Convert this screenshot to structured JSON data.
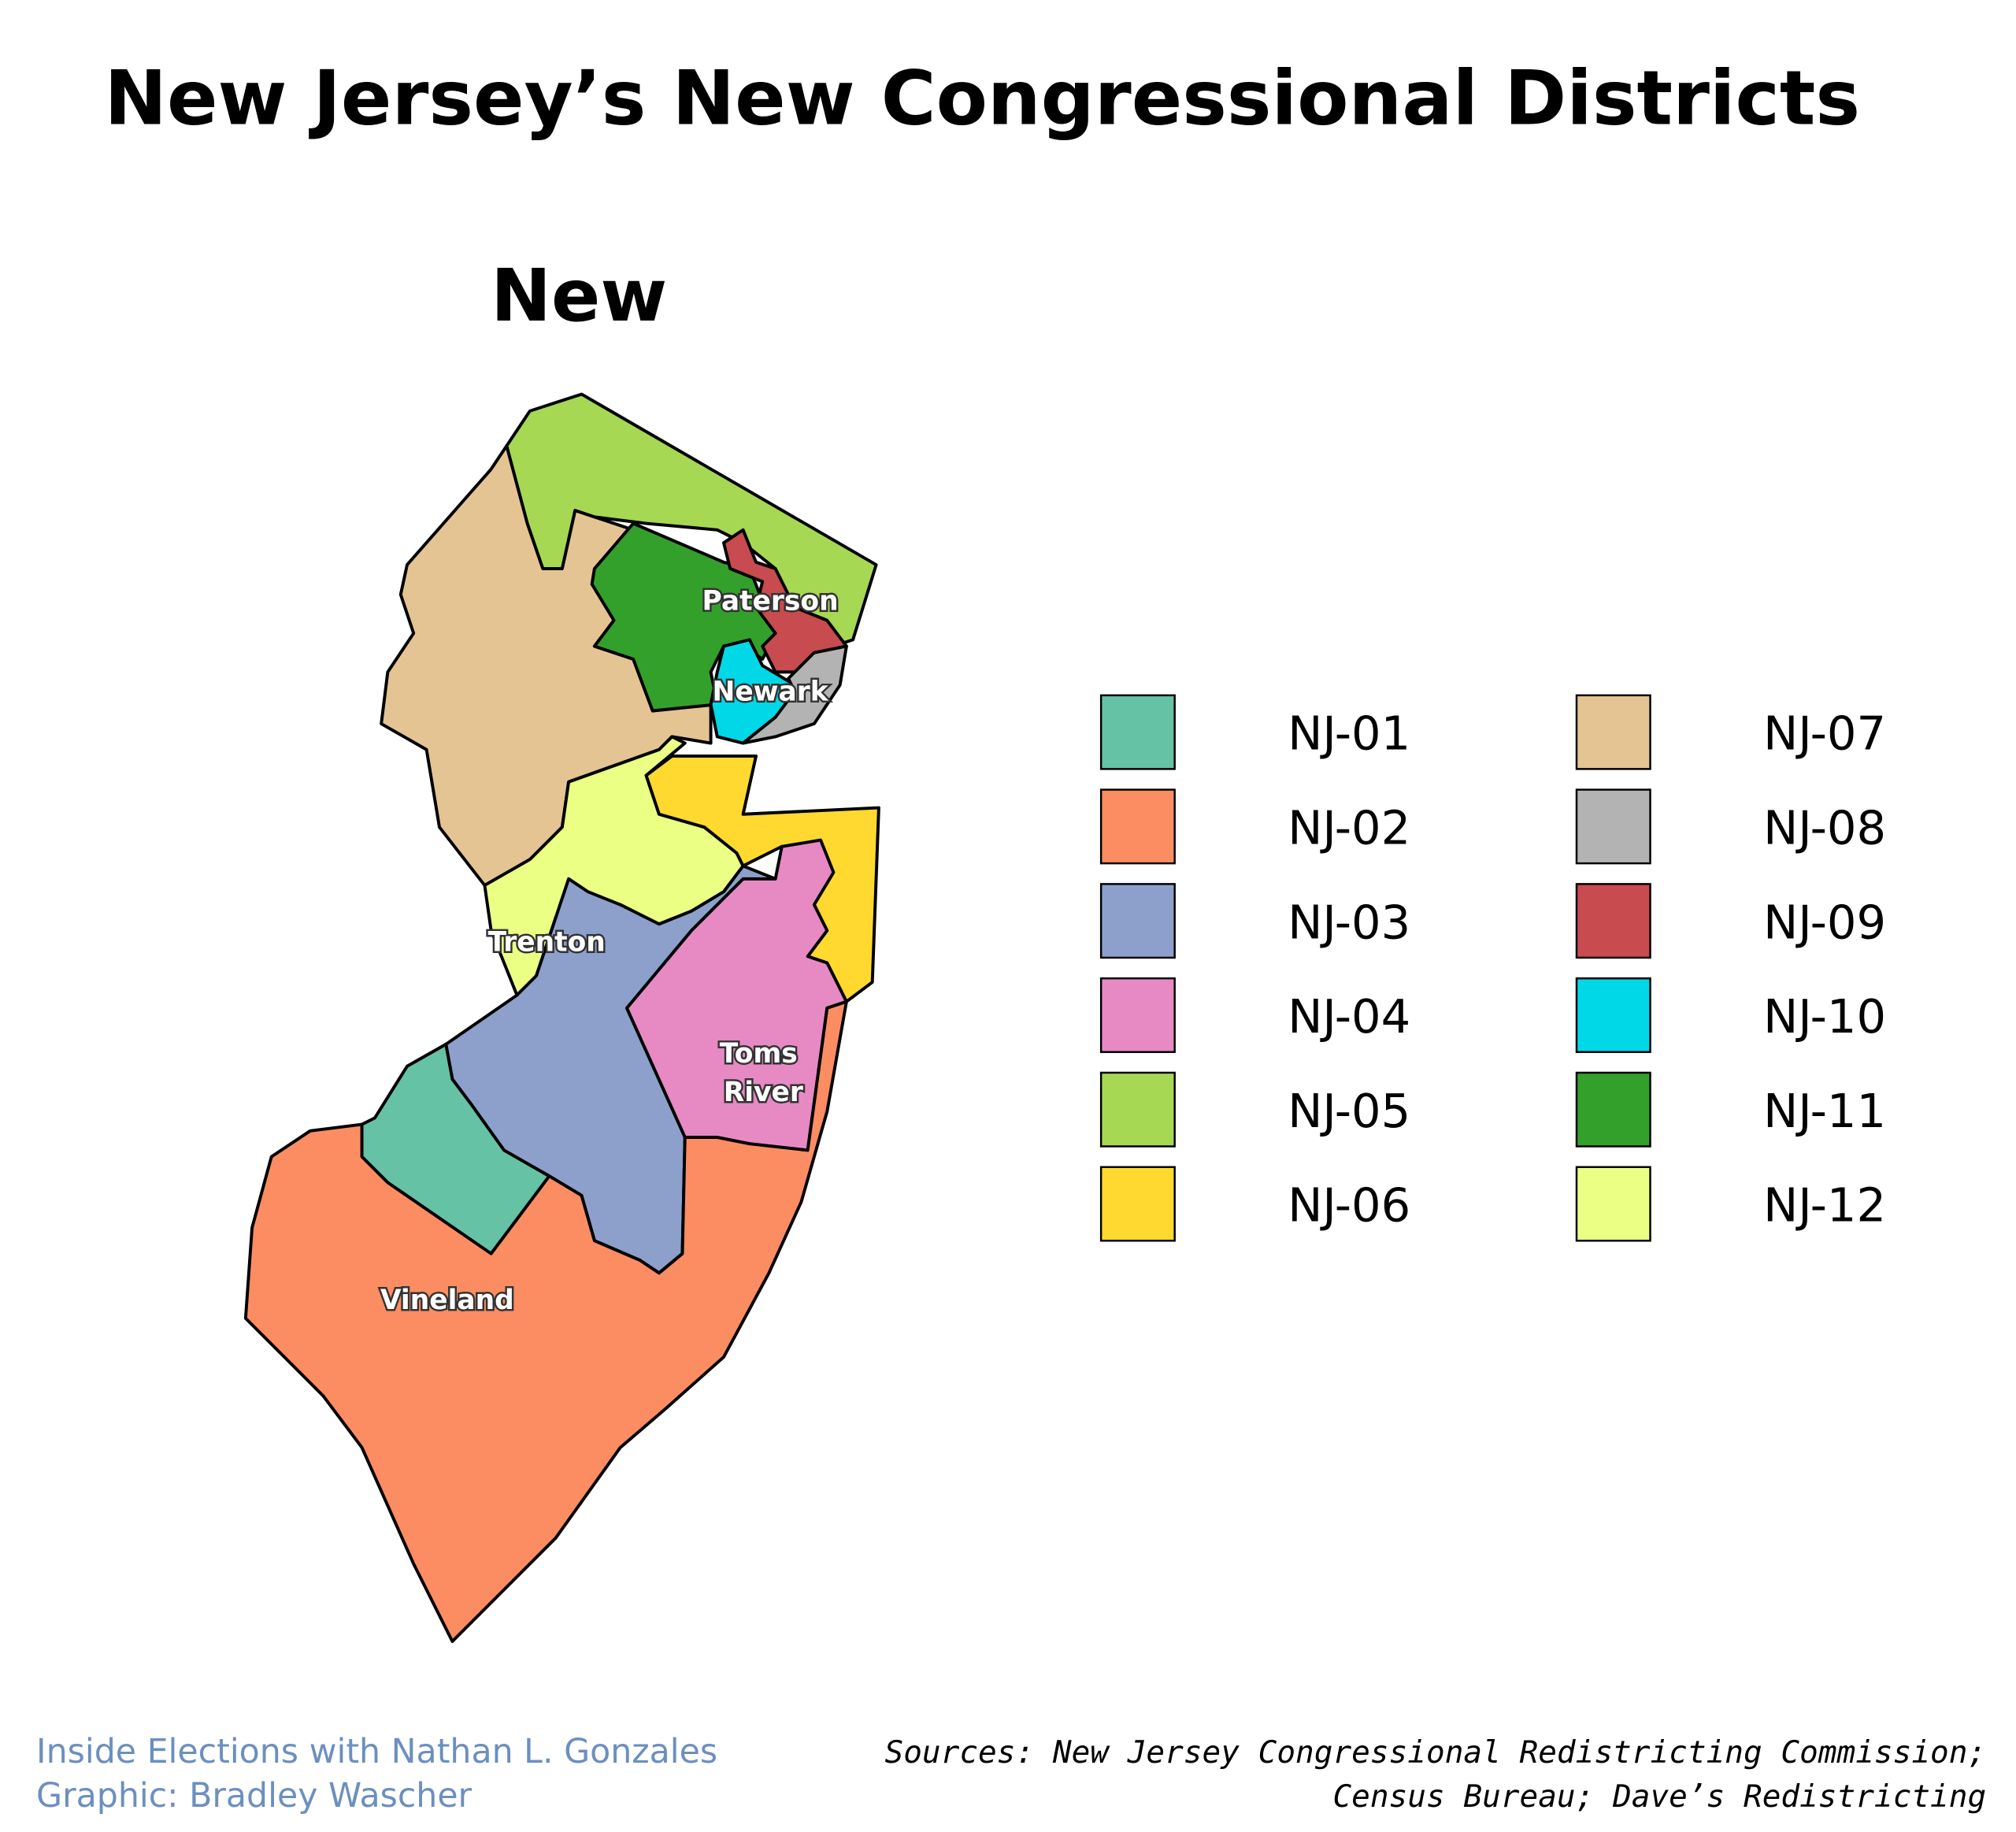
{
  "title": "New Jersey’s New Congressional Districts",
  "subtitle": "New",
  "map": {
    "cities": [
      "Paterson",
      "Newark",
      "Trenton",
      "Toms River",
      "Vineland"
    ]
  },
  "legend": {
    "entries": [
      {
        "label": "NJ-01",
        "color": "#66c2a5"
      },
      {
        "label": "NJ-02",
        "color": "#fc8d62"
      },
      {
        "label": "NJ-03",
        "color": "#8da0cb"
      },
      {
        "label": "NJ-04",
        "color": "#e78ac3"
      },
      {
        "label": "NJ-05",
        "color": "#a6d854"
      },
      {
        "label": "NJ-06",
        "color": "#ffd92f"
      },
      {
        "label": "NJ-07",
        "color": "#e5c494"
      },
      {
        "label": "NJ-08",
        "color": "#b3b3b3"
      },
      {
        "label": "NJ-09",
        "color": "#c84b4f"
      },
      {
        "label": "NJ-10",
        "color": "#00d8e8"
      },
      {
        "label": "NJ-11",
        "color": "#33a02c"
      },
      {
        "label": "NJ-12",
        "color": "#ebff85"
      }
    ]
  },
  "footer": {
    "credit": [
      "Inside Elections with Nathan L. Gonzales",
      "Graphic: Bradley Wascher"
    ],
    "sources": [
      "Sources: New Jersey Congressional Redistricting Commission;",
      "Census Bureau; Dave’s Redistricting"
    ]
  }
}
